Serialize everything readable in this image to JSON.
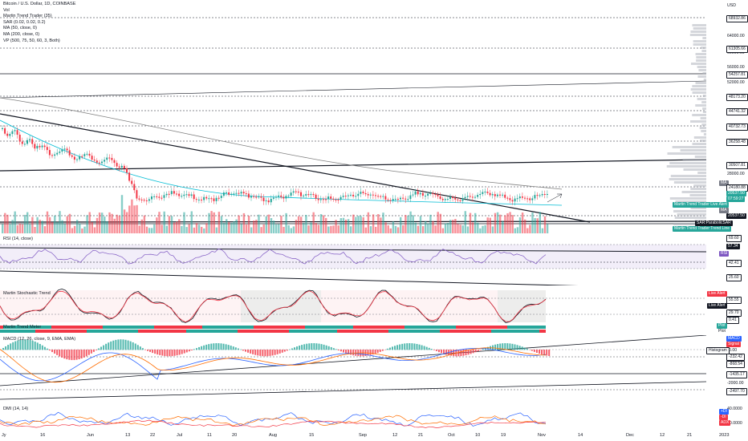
{
  "main_pane": {
    "legend": [
      "Bitcoin / U.S. Dollar, 1D, COINBASE",
      "Vol",
      "Martin Trend Trader (35)",
      "SAR (0.02, 0.02, 0.2)",
      "MA (50, close, 0)",
      "MA (200, close, 0)",
      "VP (500, 75, 50, 60, 3, Both)"
    ],
    "currency": "USD",
    "price_levels": [
      "68932.86",
      "64000.00",
      "60000.00",
      "61305.66",
      "56000.00",
      "54257.81",
      "52000.00",
      "48173.20",
      "44741.32",
      "40732.73",
      "36258.48",
      "30507.81",
      "28000.00",
      "24180.88",
      "20537.50",
      "19417.09",
      "19600.00",
      "17900.00",
      "17600.00"
    ],
    "tags": {
      "price": "20537.50",
      "countdown": "07:59:27",
      "live_alert": "Martin Trend Trader Live Alert",
      "ma": "MA",
      "sar": "SAR:ParabolicSAR",
      "trend_line": "Martin Trend Trader:Trend Line",
      "ma_top": "MA"
    }
  },
  "rsi_pane": {
    "title": "RSI (14, close)",
    "levels": [
      "69.60",
      "57.34",
      "42.41",
      "25.60"
    ],
    "tag": "RSI"
  },
  "stoch_pane": {
    "title": "Martin Stochastic Trend",
    "levels": [
      "55.55",
      "29.70",
      "0.41"
    ],
    "live_alert_1": "Live Alert",
    "live_alert_2": "Live Alert"
  },
  "trend_meter_pane": {
    "title": "Martin Trend Meter",
    "tag": "Plot",
    "tag2": "Plot"
  },
  "macd_pane": {
    "title": "MACD (12, 26, close, 9, EMA, EMA)",
    "levels": [
      "0.00",
      "-232.42",
      "-868.54",
      "-1435.17",
      "-2000.00",
      "-2497.70"
    ],
    "tags": [
      "MACD",
      "Signal",
      "Histogram"
    ]
  },
  "dmi_pane": {
    "title": "DMI (14, 14)",
    "levels": [
      "40.0000",
      "20.0000"
    ],
    "tags": [
      "+DI",
      "-DI",
      "ADX"
    ]
  },
  "x_axis": [
    "Jy",
    "16",
    "Jun",
    "13",
    "22",
    "Jul",
    "11",
    "20",
    "Aug",
    "15",
    "Sep",
    "12",
    "21",
    "Oct",
    "10",
    "19",
    "Nov",
    "14",
    "Dec",
    "12",
    "21",
    "2023"
  ],
  "colors": {
    "up": "#26a69a",
    "down": "#f23645",
    "ma50": "#00bcd4",
    "ma200": "#7f7f7f",
    "rsi": "#7e57c2",
    "dark": "#131722"
  }
}
